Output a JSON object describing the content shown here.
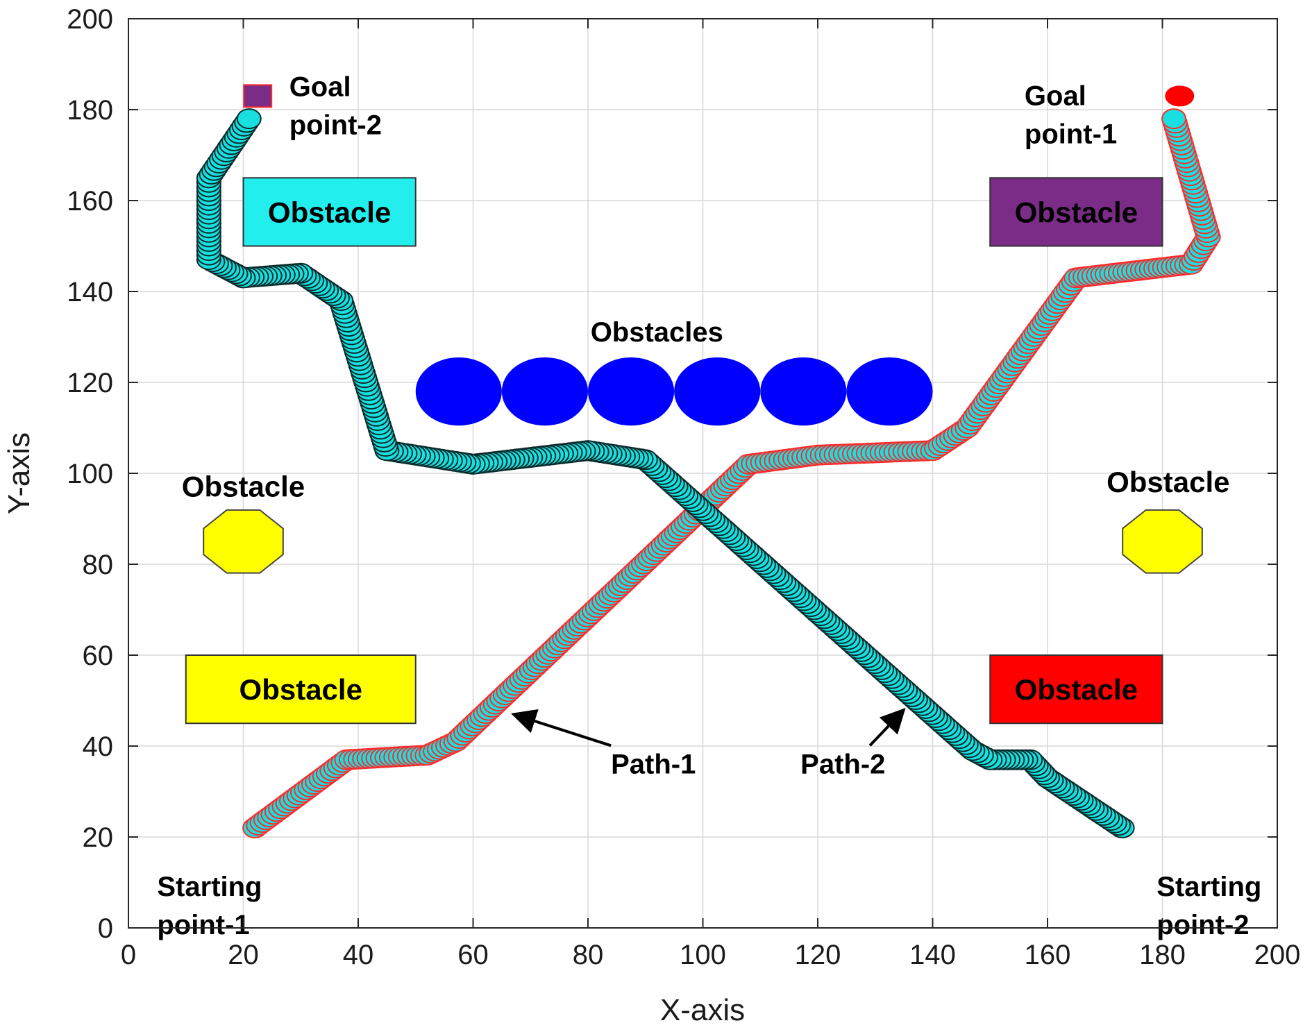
{
  "chart_data": {
    "type": "scatter",
    "title": "",
    "xlabel": "X-axis",
    "ylabel": "Y-axis",
    "xlim": [
      0,
      200
    ],
    "ylim": [
      0,
      200
    ],
    "xticks": [
      0,
      20,
      40,
      60,
      80,
      100,
      120,
      140,
      160,
      180,
      200
    ],
    "yticks": [
      0,
      20,
      40,
      60,
      80,
      100,
      120,
      140,
      160,
      180,
      200
    ],
    "grid": true,
    "series": [
      {
        "name": "Path-1",
        "marker_color": "#19e0e0",
        "edge_color": "#ff2a2a",
        "points": [
          [
            22,
            22
          ],
          [
            38,
            37
          ],
          [
            52,
            38
          ],
          [
            57,
            41
          ],
          [
            108,
            102
          ],
          [
            120,
            104
          ],
          [
            140,
            105
          ],
          [
            146,
            110
          ],
          [
            165,
            143
          ],
          [
            185,
            146
          ],
          [
            188,
            152
          ],
          [
            182,
            178
          ]
        ]
      },
      {
        "name": "Path-2",
        "marker_color": "#19e0e0",
        "edge_color": "#0a2a2a",
        "points": [
          [
            173,
            22
          ],
          [
            160,
            33
          ],
          [
            157,
            37
          ],
          [
            150,
            37
          ],
          [
            147,
            39
          ],
          [
            90,
            103
          ],
          [
            80,
            105
          ],
          [
            60,
            102
          ],
          [
            45,
            105
          ],
          [
            37,
            138
          ],
          [
            30,
            144
          ],
          [
            20,
            143
          ],
          [
            14,
            147
          ],
          [
            14,
            165
          ],
          [
            21,
            178
          ]
        ]
      }
    ],
    "annotations": [
      {
        "text_lines": [
          "Goal",
          "point-2"
        ],
        "x": 28,
        "y": 183
      },
      {
        "text_lines": [
          "Goal",
          "point-1"
        ],
        "x": 156,
        "y": 181
      },
      {
        "text_lines": [
          "Starting",
          "point-1"
        ],
        "x": 5,
        "y": 7
      },
      {
        "text_lines": [
          "Starting",
          "point-2"
        ],
        "x": 179,
        "y": 7
      },
      {
        "text_lines": [
          "Obstacles"
        ],
        "x": 92,
        "y": 129
      },
      {
        "text_lines": [
          "Path-1"
        ],
        "x": 84,
        "y": 34,
        "arrow_to": [
          67,
          47
        ]
      },
      {
        "text_lines": [
          "Path-2"
        ],
        "x": 117,
        "y": 34,
        "arrow_to": [
          135,
          48
        ]
      }
    ],
    "obstacles": [
      {
        "shape": "rect",
        "label": "Obstacle",
        "x0": 20,
        "x1": 50,
        "y0": 150,
        "y1": 165,
        "color": "#22eeee"
      },
      {
        "shape": "rect",
        "label": "Obstacle",
        "x0": 150,
        "x1": 180,
        "y0": 150,
        "y1": 165,
        "color": "#7a2c86"
      },
      {
        "shape": "rect",
        "label": "Obstacle",
        "x0": 10,
        "x1": 50,
        "y0": 45,
        "y1": 60,
        "color": "#ffff00"
      },
      {
        "shape": "rect",
        "label": "Obstacle",
        "x0": 150,
        "x1": 180,
        "y0": 45,
        "y1": 60,
        "color": "#ff0000"
      },
      {
        "shape": "octagon",
        "label": "Obstacle",
        "cx": 20,
        "cy": 85,
        "r": 7.5,
        "color": "#ffff00",
        "label_x": 20,
        "label_y": 97
      },
      {
        "shape": "octagon",
        "label": "Obstacle",
        "cx": 180,
        "cy": 85,
        "r": 7.5,
        "color": "#ffff00",
        "label_x": 181,
        "label_y": 98
      },
      {
        "shape": "circle",
        "label": "",
        "cx": 57.5,
        "cy": 118,
        "rx": 7.5,
        "ry": 7.5,
        "color": "#0000ff"
      },
      {
        "shape": "circle",
        "label": "",
        "cx": 72.5,
        "cy": 118,
        "rx": 7.5,
        "ry": 7.5,
        "color": "#0000ff"
      },
      {
        "shape": "circle",
        "label": "",
        "cx": 87.5,
        "cy": 118,
        "rx": 7.5,
        "ry": 7.5,
        "color": "#0000ff"
      },
      {
        "shape": "circle",
        "label": "",
        "cx": 102.5,
        "cy": 118,
        "rx": 7.5,
        "ry": 7.5,
        "color": "#0000ff"
      },
      {
        "shape": "circle",
        "label": "",
        "cx": 117.5,
        "cy": 118,
        "rx": 7.5,
        "ry": 7.5,
        "color": "#0000ff"
      },
      {
        "shape": "circle",
        "label": "",
        "cx": 132.5,
        "cy": 118,
        "rx": 7.5,
        "ry": 7.5,
        "color": "#0000ff"
      }
    ],
    "markers": [
      {
        "name": "goal-point-2-marker",
        "shape": "square",
        "x": 22.5,
        "y": 183,
        "color": "#7a2c86",
        "edge": "#ff2a2a"
      },
      {
        "name": "goal-point-1-marker",
        "shape": "circle",
        "x": 183,
        "y": 183,
        "color": "#ff0000",
        "edge": "#ff0000"
      }
    ]
  }
}
